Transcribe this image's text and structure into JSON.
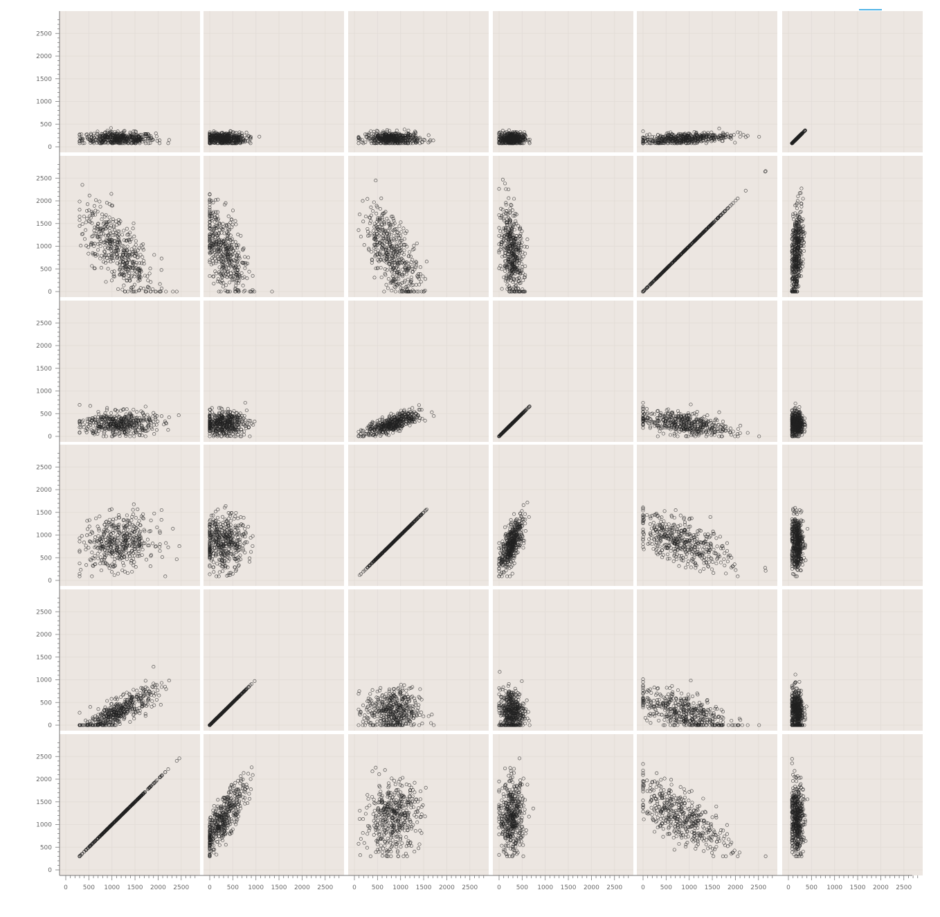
{
  "colors": {
    "panel_background": "#ece6e1",
    "grid": "#e3ddd8",
    "marker": "#222222",
    "axis": "#777777",
    "legend_accent": "#4fb3e6"
  },
  "chart_data": {
    "type": "scatter",
    "title": "",
    "rows": 6,
    "columns": 6,
    "axis_range": [
      0,
      2800
    ],
    "y_tick_labels": [
      "0",
      "500",
      "1000",
      "1500",
      "2000",
      "2500"
    ],
    "x_tick_labels": [
      "0",
      "500",
      "1000",
      "1500",
      "2000",
      "2500"
    ],
    "grid": true,
    "marker": "open-circle",
    "variables": [
      {
        "range": [
          300,
          2460
        ],
        "mean": 1150
      },
      {
        "range": [
          0,
          1350
        ],
        "mean": 300
      },
      {
        "range": [
          90,
          1720
        ],
        "mean": 830
      },
      {
        "range": [
          0,
          740
        ],
        "mean": 280
      },
      {
        "range": [
          0,
          2770
        ],
        "mean": 850
      },
      {
        "range": [
          80,
          470
        ],
        "mean": 180
      }
    ],
    "rows_variable_order": [
      5,
      4,
      3,
      2,
      1,
      0
    ],
    "columns_variable_order": [
      0,
      1,
      2,
      3,
      4,
      5
    ],
    "correlations": [
      [
        1.0,
        0.82,
        0.15,
        0.05,
        -0.72,
        -0.05
      ],
      [
        0.82,
        1.0,
        0.0,
        0.0,
        -0.55,
        -0.05
      ],
      [
        0.15,
        0.0,
        1.0,
        0.72,
        -0.6,
        -0.05
      ],
      [
        0.05,
        0.0,
        0.72,
        1.0,
        -0.4,
        0.0
      ],
      [
        -0.72,
        -0.55,
        -0.6,
        -0.4,
        1.0,
        0.45
      ],
      [
        -0.05,
        -0.05,
        -0.05,
        0.0,
        0.45,
        1.0
      ]
    ],
    "points_per_panel": 450
  }
}
